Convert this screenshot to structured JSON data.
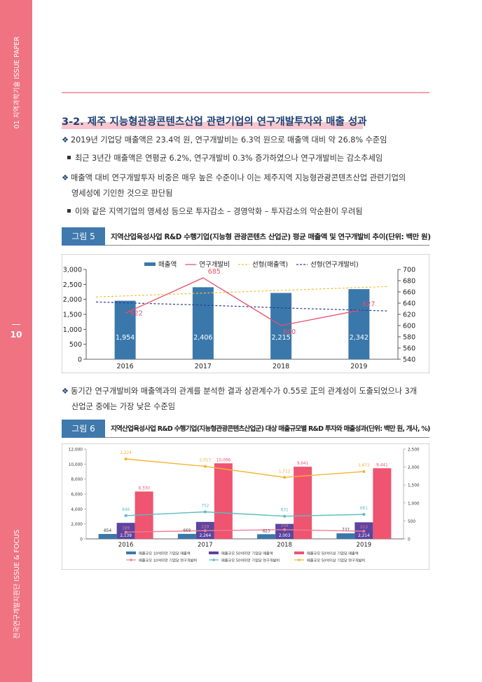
{
  "sidebar": {
    "top_label": "01 지역과학기술 ISSUE PAPER",
    "page_number": "10",
    "bottom_label": "전국연구개발지원단 ISSUE & FOCUS",
    "color": "#f07381"
  },
  "section": {
    "title": "3-2. 제주 지능형관광콘텐츠산업 관련기업의 연구개발투자와 매출 성과"
  },
  "body": {
    "marker": "❖",
    "p1": "2019년 기업당 매출액은 23.4억 원, 연구개발비는 6.3억 원으로 매출액 대비 약 26.8% 수준임",
    "p1_sub": "최근 3년간 매출액은 연평균 6.2%, 연구개발비 0.3% 증가하였으나 연구개발비는 감소추세임",
    "p2_line1": "매출액 대비 연구개발투자 비중은 매우 높은 수준이나 이는 제주지역 지능형관광콘텐츠산업 관련기업의",
    "p2_line2": "영세성에 기인한 것으로 판단됨",
    "p2_sub": "이와 같은 지역기업의 영세성 등으로 투자감소 – 경영악화 – 투자감소의 악순환이 우려됨",
    "p3_line1": "동기간 연구개발비와 매출액과의 관계를 분석한 결과 상관계수가 0.55로 正의 관계성이 도출되었으나 3개",
    "p3_line2": "산업군 중에는 가장 낮은 수준임"
  },
  "figures": {
    "fig5": {
      "tag": "그림 5",
      "caption": "지역산업육성사업 R&D 수행기업(지능형 관광콘텐츠 산업군) 평균 매출액 및 연구개발비 추이(단위: 백만 원)"
    },
    "fig6": {
      "tag": "그림 6",
      "caption": "지역산업육성사업 R&D 수행기업(지능형관광콘텐츠산업군) 대상 매출규모별 R&D 투자와 매출성과(단위: 백만 원, 개사, %)"
    }
  },
  "chart_data": [
    {
      "type": "bar",
      "categories": [
        "2016",
        "2017",
        "2018",
        "2019"
      ],
      "series": [
        {
          "name": "매출액",
          "kind": "bar",
          "axis": "left",
          "values": [
            1954,
            2406,
            2215,
            2342
          ],
          "labels": [
            "1,954",
            "2,406",
            "2,215",
            "2,342"
          ],
          "color": "#3a78ab"
        },
        {
          "name": "연구개발비",
          "kind": "line",
          "axis": "right",
          "values": [
            622,
            685,
            600,
            627
          ],
          "labels": [
            "622",
            "685",
            "600",
            "627"
          ],
          "color": "#e8506a"
        },
        {
          "name": "선형(매출액)",
          "kind": "trend",
          "axis": "left",
          "values": [
            2080,
            2197,
            2313,
            2430
          ],
          "color": "#f3c033"
        },
        {
          "name": "선형(연구개발비)",
          "kind": "trend",
          "axis": "right",
          "values": [
            642,
            637,
            631,
            626
          ],
          "color": "#2c3d8f"
        }
      ],
      "left_axis": {
        "ylim": [
          0,
          3000
        ],
        "ticks": [
          "0",
          "500",
          "1,000",
          "1,500",
          "2,000",
          "2,500",
          "3,000"
        ]
      },
      "right_axis": {
        "ylim": [
          540,
          700
        ],
        "ticks": [
          "540",
          "560",
          "580",
          "600",
          "620",
          "640",
          "660",
          "680",
          "700"
        ]
      },
      "legend": "top"
    },
    {
      "type": "bar",
      "categories": [
        "2016",
        "2017",
        "2018",
        "2019"
      ],
      "series": [
        {
          "name": "매출규모 10억미만 기업당 매출액",
          "kind": "bar",
          "axis": "left",
          "values": [
            654,
            668,
            623,
            737
          ],
          "labels": [
            "654",
            "668",
            "623",
            "737"
          ],
          "color": "#3a78ab"
        },
        {
          "name": "매출규모 50억미만 기업당 매출액",
          "kind": "bar",
          "axis": "left",
          "values": [
            2139,
            2264,
            2003,
            2214
          ],
          "labels": [
            "2,139",
            "2,264",
            "2,003",
            "2,214"
          ],
          "color": "#5a45a0"
        },
        {
          "name": "매출규모 50억이상 기업당 매출액",
          "kind": "bar",
          "axis": "left",
          "values": [
            6330,
            10096,
            9641,
            9441
          ],
          "labels": [
            "6,330",
            "10,096",
            "9,641",
            "9,441"
          ],
          "color": "#ef5470"
        },
        {
          "name": "매출규모 10억미만 기업당 연구개발비",
          "kind": "line",
          "axis": "right",
          "values": [
            189,
            228,
            256,
            213
          ],
          "labels": [
            "189",
            "228",
            "256",
            "213"
          ],
          "color": "#ef7e93"
        },
        {
          "name": "매출규모 50억미만 기업당 연구개발비",
          "kind": "line",
          "axis": "right",
          "values": [
            646,
            752,
            631,
            681
          ],
          "labels": [
            "646",
            "752",
            "631",
            "681"
          ],
          "color": "#5cbcc0"
        },
        {
          "name": "매출규모 50억이상 기업당 연구개발비",
          "kind": "line",
          "axis": "right",
          "values": [
            2224,
            2017,
            1712,
            1873
          ],
          "labels": [
            "2,224",
            "2,017",
            "1,712",
            "1,873"
          ],
          "color": "#f3b433"
        }
      ],
      "left_axis": {
        "ylim": [
          0,
          12000
        ],
        "ticks": [
          "0",
          "2,000",
          "4,000",
          "6,000",
          "8,000",
          "10,000",
          "12,000"
        ]
      },
      "right_axis": {
        "ylim": [
          0,
          2500
        ],
        "ticks": [
          "0",
          "500",
          "1,000",
          "1,500",
          "2,000",
          "2,500"
        ]
      },
      "legend": "bottom"
    }
  ]
}
